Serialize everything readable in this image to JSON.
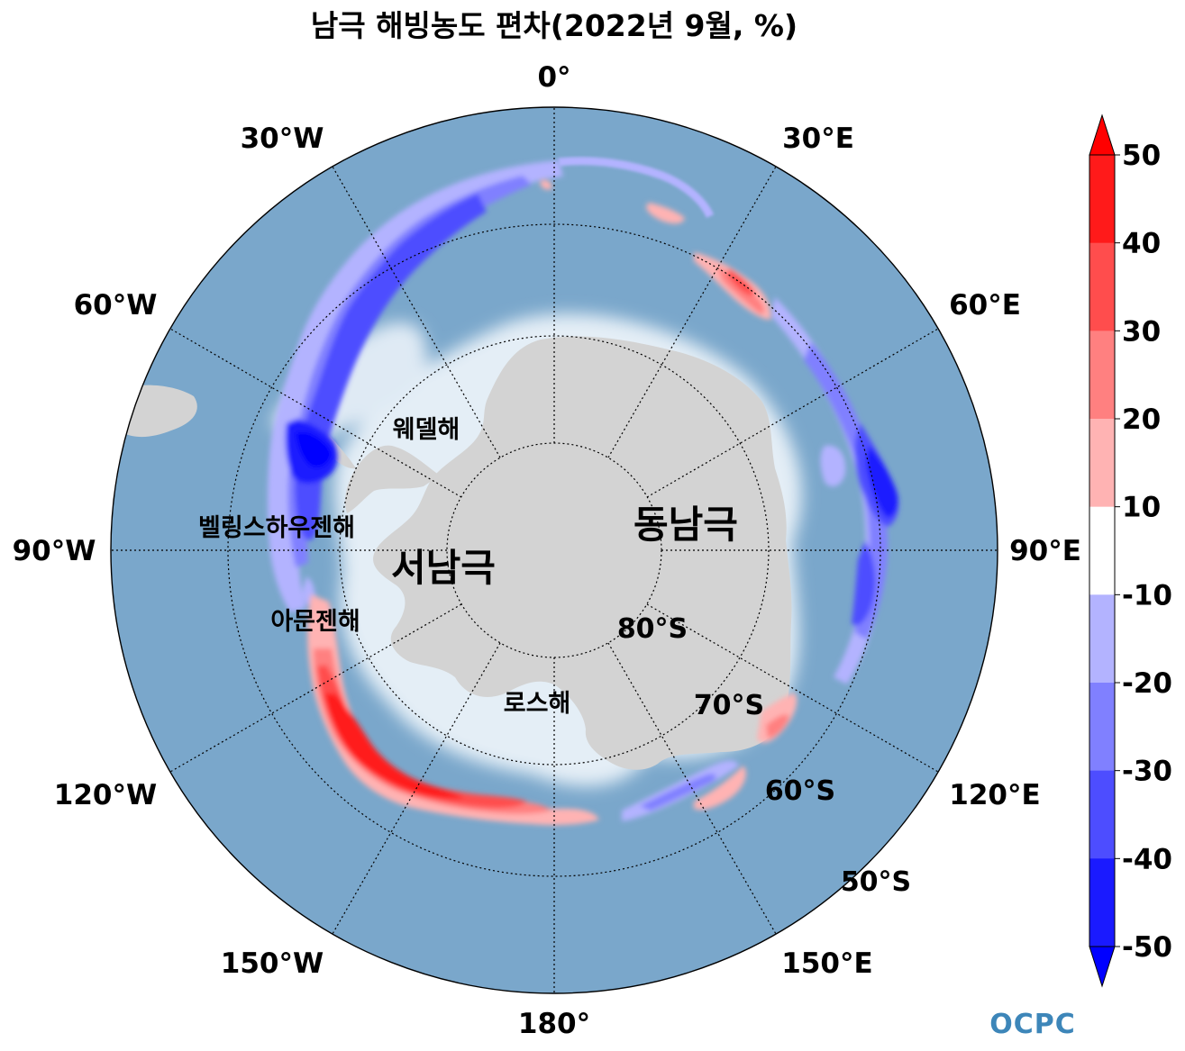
{
  "title": "남극 해빙농도 편차(2022년 9월, %)",
  "longitude_labels": {
    "lon_0": "0°",
    "lon_30e": "30°E",
    "lon_60e": "60°E",
    "lon_90e": "90°E",
    "lon_120e": "120°E",
    "lon_150e": "150°E",
    "lon_180": "180°",
    "lon_150w": "150°W",
    "lon_120w": "120°W",
    "lon_90w": "90°W",
    "lon_60w": "60°W",
    "lon_30w": "30°W"
  },
  "latitude_labels": {
    "lat_80": "80°S",
    "lat_70": "70°S",
    "lat_60": "60°S",
    "lat_50": "50°S"
  },
  "region_labels": {
    "weddell": "웨델해",
    "bellingshausen": "벨링스하우젠해",
    "amundsen": "아문젠해",
    "ross": "로스해",
    "west_antarctica": "서남극",
    "east_antarctica": "동남극"
  },
  "colorbar": {
    "ticks": [
      "50",
      "40",
      "30",
      "20",
      "10",
      "-10",
      "-20",
      "-30",
      "-40",
      "-50"
    ],
    "colors": [
      "#ff1a1a",
      "#ff4d4d",
      "#ff8080",
      "#ffb3b3",
      "#ffffff",
      "#b3b3ff",
      "#8080ff",
      "#4d4dff",
      "#1a1aff"
    ],
    "extend_max_color": "#ff0000",
    "extend_min_color": "#0000ff"
  },
  "colors": {
    "ocean": "#7aa7cb",
    "land": "#d3d3d3",
    "ice_shelf_halo": "#e9f1f7"
  },
  "logo": {
    "text": "OCPC"
  }
}
